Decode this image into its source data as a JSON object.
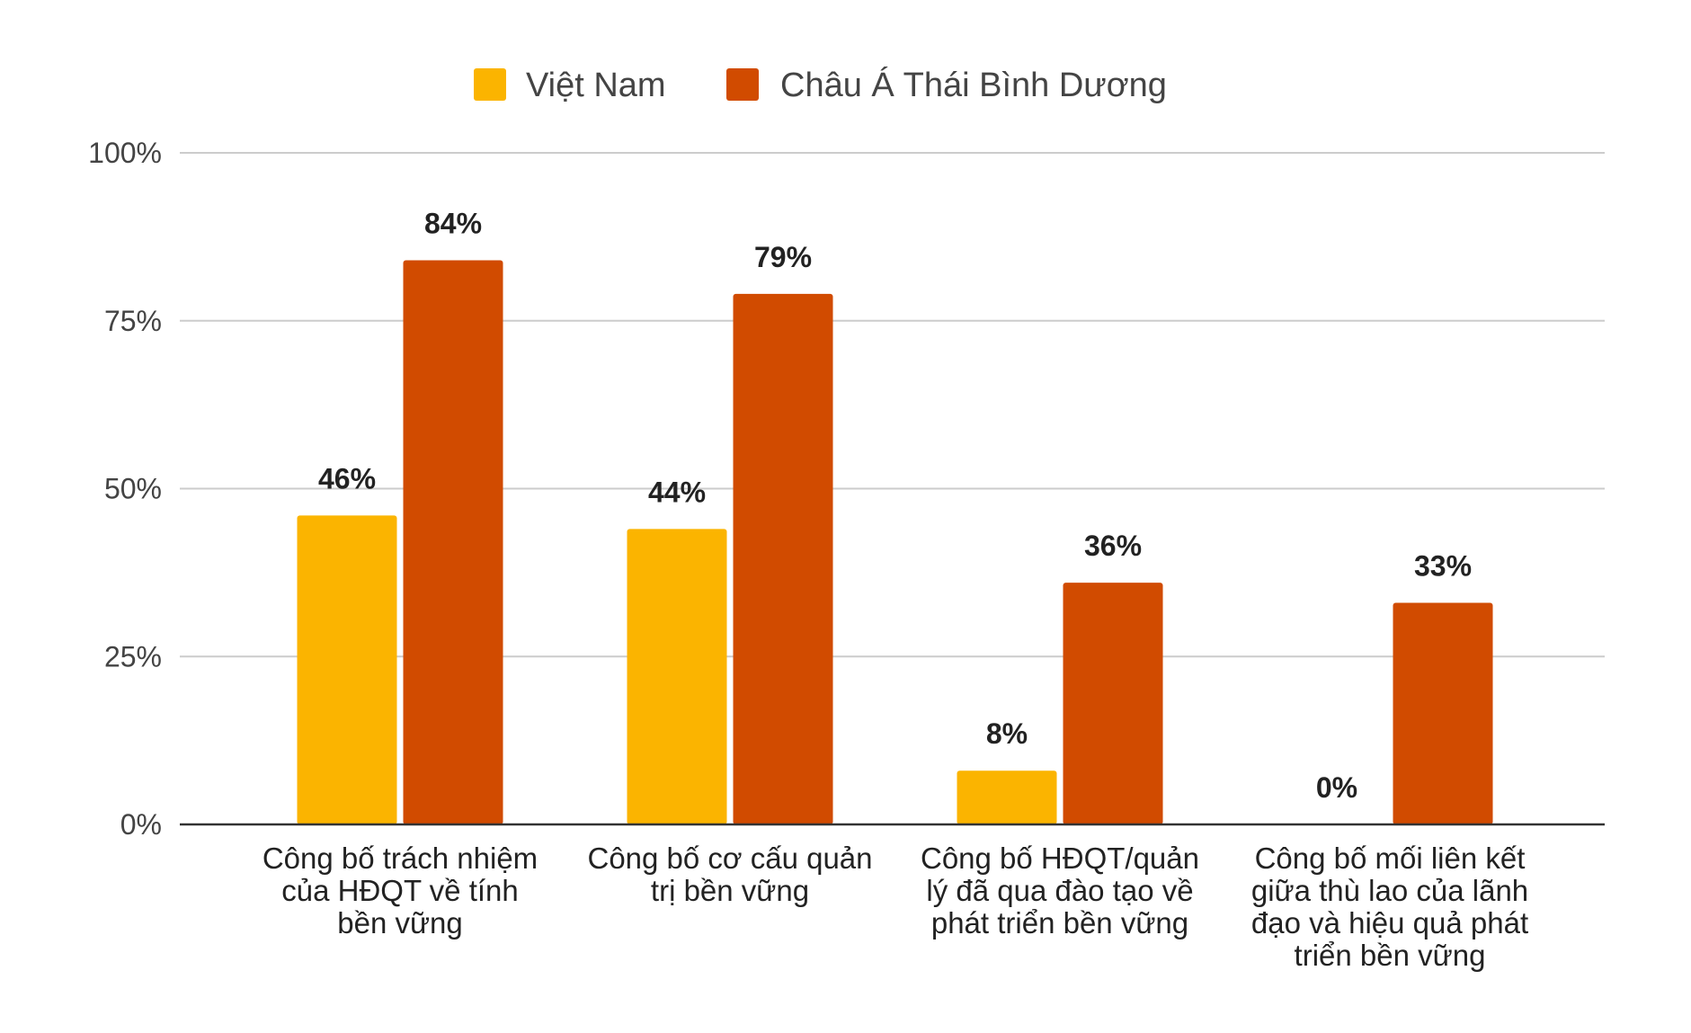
{
  "chart_data": {
    "type": "bar",
    "title": "",
    "xlabel": "",
    "ylabel": "",
    "ylim": [
      0,
      100
    ],
    "yticks": [
      0,
      25,
      50,
      75,
      100
    ],
    "ytick_labels": [
      "0%",
      "25%",
      "50%",
      "75%",
      "100%"
    ],
    "grid": true,
    "legend_position": "top-center",
    "categories": [
      [
        "Công bố trách nhiệm",
        "của HĐQT về tính",
        "bền vững"
      ],
      [
        "Công bố cơ cấu quản",
        "trị bền vững"
      ],
      [
        "Công bố HĐQT/quản",
        "lý đã qua đào tạo về",
        "phát triển bền vững"
      ],
      [
        "Công bố mối liên kết",
        "giữa thù lao của lãnh",
        "đạo và hiệu quả phát",
        "triển bền vững"
      ]
    ],
    "series": [
      {
        "name": "Việt Nam",
        "color": "#FBB400",
        "values": [
          46,
          44,
          8,
          0
        ],
        "labels": [
          "46%",
          "44%",
          "8%",
          "0%"
        ]
      },
      {
        "name": "Châu Á Thái Bình Dương",
        "color": "#D14B00",
        "values": [
          84,
          79,
          36,
          33
        ],
        "labels": [
          "84%",
          "79%",
          "36%",
          "33%"
        ]
      }
    ]
  }
}
